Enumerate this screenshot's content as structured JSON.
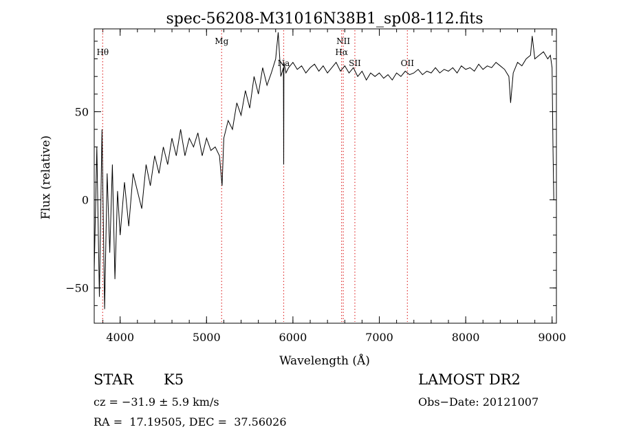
{
  "chart_data": {
    "type": "line",
    "title": "spec-56208-M31016N38B1_sp08-112.fits",
    "xlabel": "Wavelength (Å)",
    "ylabel": "Flux (relative)",
    "xlim": [
      3700,
      9050
    ],
    "ylim": [
      -70,
      97
    ],
    "x_ticks": [
      4000,
      5000,
      6000,
      7000,
      8000,
      9000
    ],
    "y_ticks": [
      -50,
      0,
      50
    ],
    "x_minor_step": 200,
    "y_minor_step": 10,
    "grid": false,
    "line_color": "#000000",
    "marker_color": "#e03030",
    "lines": [
      {
        "label": "Hθ",
        "x": 3798,
        "label_row": 1
      },
      {
        "label": "Mg",
        "x": 5175,
        "label_row": 0
      },
      {
        "label": "Na",
        "x": 5893,
        "label_row": 2
      },
      {
        "label": "NII",
        "x": 6583,
        "label_row": 0
      },
      {
        "label": "Hα",
        "x": 6563,
        "label_row": 1
      },
      {
        "label": "SII",
        "x": 6717,
        "label_row": 2
      },
      {
        "label": "OII",
        "x": 7325,
        "label_row": 2
      }
    ],
    "series": [
      {
        "x": [
          3700,
          3730,
          3760,
          3790,
          3820,
          3850,
          3880,
          3910,
          3940,
          3970,
          4000,
          4050,
          4100,
          4150,
          4200,
          4250,
          4300,
          4350,
          4400,
          4450,
          4500,
          4550,
          4600,
          4650,
          4700,
          4750,
          4800,
          4850,
          4900,
          4950,
          5000,
          5050,
          5100,
          5150,
          5180,
          5200,
          5250,
          5300,
          5350,
          5400,
          5450,
          5500,
          5550,
          5600,
          5650,
          5700,
          5750,
          5800,
          5830,
          5860,
          5890,
          5893,
          5896,
          5920,
          5950,
          6000,
          6050,
          6100,
          6150,
          6200,
          6250,
          6300,
          6350,
          6400,
          6450,
          6500,
          6550,
          6600,
          6650,
          6700,
          6750,
          6800,
          6850,
          6900,
          6950,
          7000,
          7050,
          7100,
          7150,
          7200,
          7250,
          7300,
          7350,
          7400,
          7450,
          7500,
          7550,
          7600,
          7650,
          7700,
          7750,
          7800,
          7850,
          7900,
          7950,
          8000,
          8050,
          8100,
          8150,
          8200,
          8250,
          8300,
          8350,
          8400,
          8450,
          8500,
          8520,
          8550,
          8600,
          8650,
          8700,
          8750,
          8770,
          8800,
          8850,
          8900,
          8950,
          8980,
          9000,
          9010,
          9020
        ],
        "y": [
          -40,
          30,
          -55,
          40,
          -62,
          15,
          -30,
          20,
          -45,
          5,
          -20,
          10,
          -15,
          15,
          5,
          -5,
          20,
          8,
          25,
          15,
          30,
          20,
          35,
          25,
          40,
          25,
          35,
          30,
          38,
          25,
          35,
          28,
          30,
          25,
          8,
          35,
          45,
          40,
          55,
          48,
          62,
          52,
          70,
          60,
          75,
          65,
          72,
          80,
          95,
          70,
          75,
          20,
          78,
          72,
          75,
          78,
          74,
          76,
          72,
          75,
          77,
          73,
          76,
          72,
          75,
          78,
          73,
          76,
          72,
          75,
          70,
          73,
          68,
          72,
          70,
          72,
          69,
          71,
          68,
          72,
          70,
          73,
          71,
          72,
          74,
          71,
          73,
          72,
          75,
          72,
          74,
          73,
          75,
          72,
          76,
          74,
          75,
          73,
          77,
          74,
          76,
          75,
          78,
          76,
          74,
          70,
          55,
          72,
          78,
          76,
          80,
          82,
          93,
          80,
          82,
          84,
          80,
          82,
          75,
          30,
          0
        ]
      }
    ]
  },
  "info": {
    "object_type": "STAR",
    "subclass": "K5",
    "survey": "LAMOST DR2",
    "cz": "cz = −31.9 ± 5.9 km/s",
    "obs_date": "Obs−Date: 20121007",
    "coords": "RA =  17.19505, DEC =  37.56026"
  }
}
